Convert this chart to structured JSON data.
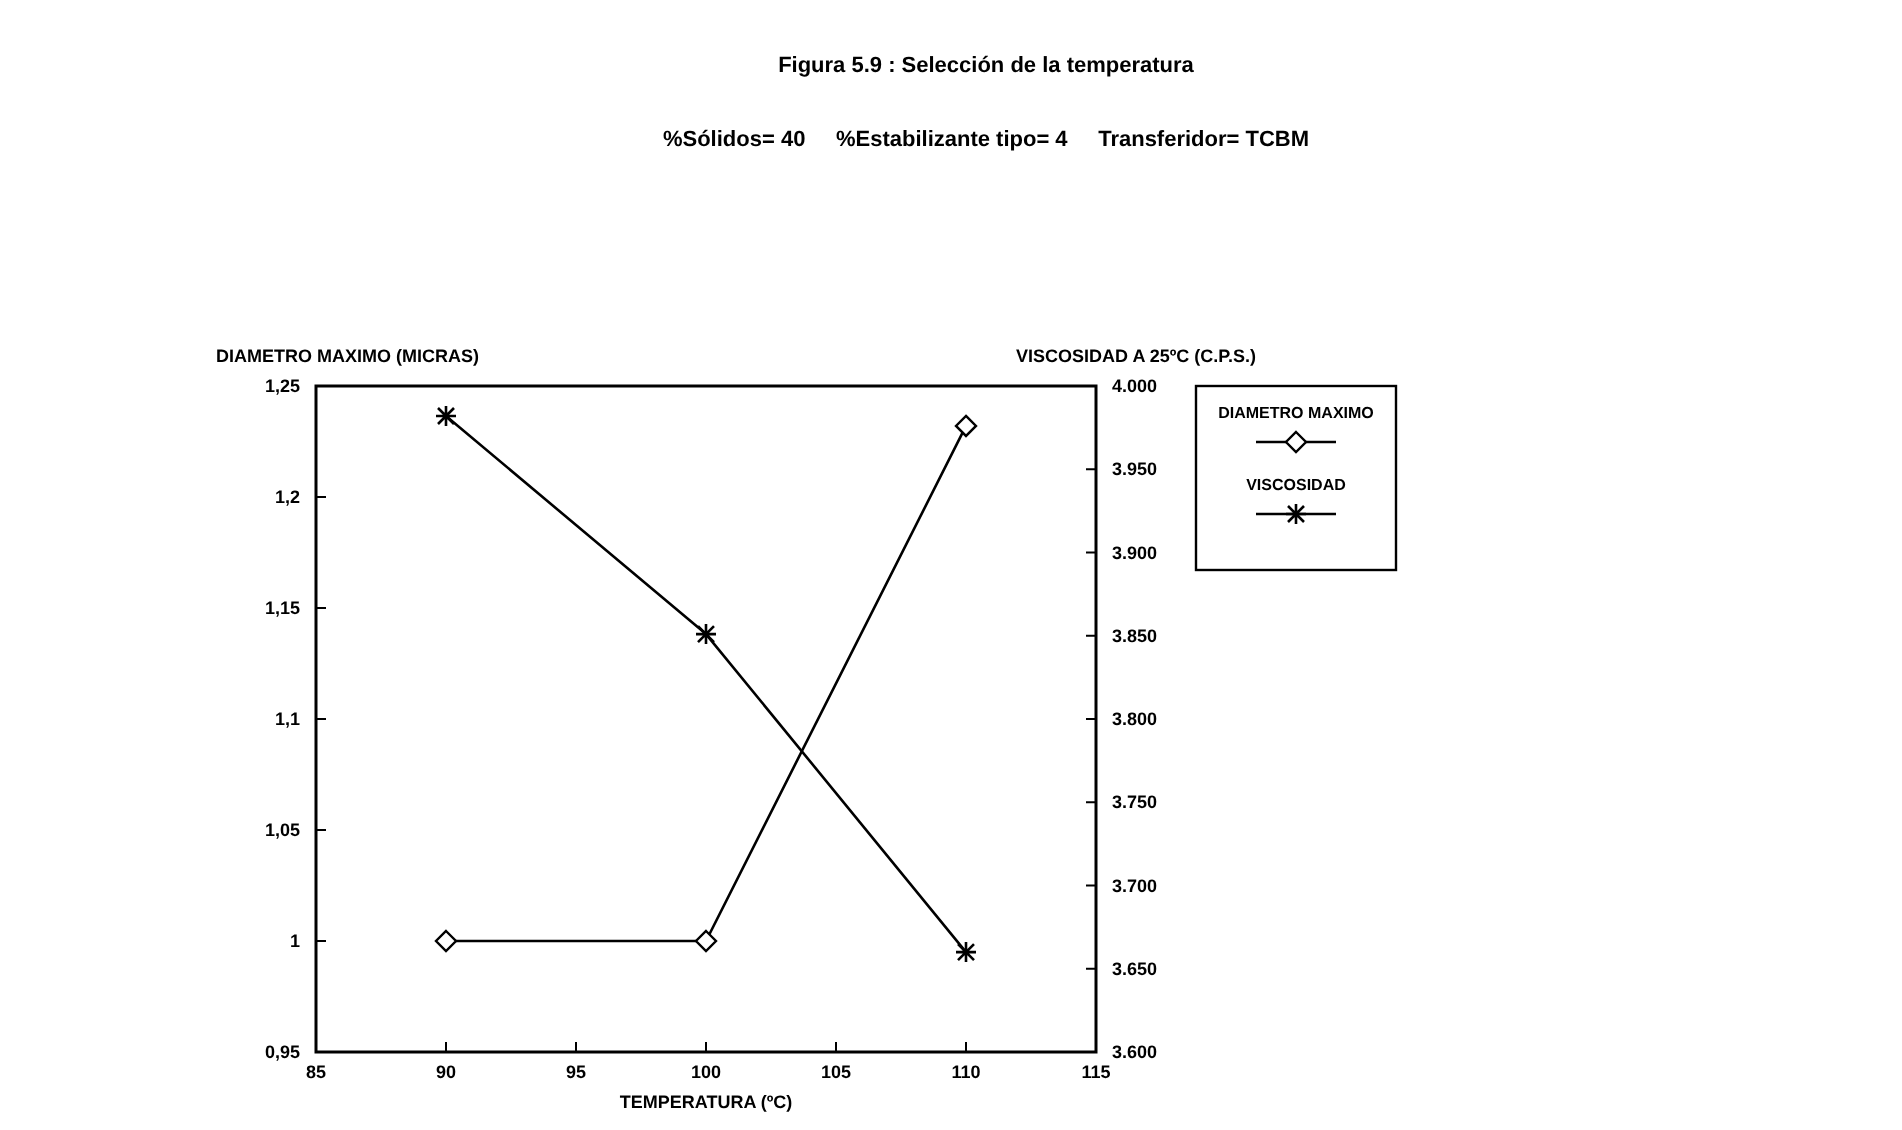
{
  "chart_data": {
    "type": "line",
    "title": "Figura 5.9 : Selección de la temperatura",
    "subtitle": "%Sólidos= 40     %Estabilizante tipo= 4     Transferidor= TCBM",
    "xlabel": "TEMPERATURA (ºC)",
    "ylabel": "DIAMETRO MAXIMO (MICRAS)",
    "y2label": "VISCOSIDAD A 25ºC (C.P.S.)",
    "x": [
      90,
      100,
      110
    ],
    "series": [
      {
        "name": "DIAMETRO MAXIMO",
        "color": "#000000",
        "marker": "diamond",
        "values": [
          1,
          1,
          1.232
        ]
      },
      {
        "name": "VISCOSIDAD",
        "color": "#000000",
        "marker": "cross",
        "axis": "y2",
        "values": [
          3982,
          3851,
          3660
        ]
      }
    ],
    "xlim": [
      85,
      115
    ],
    "xticks": [
      85,
      90,
      95,
      100,
      105,
      110,
      115
    ],
    "ylim": [
      0.95,
      1.25
    ],
    "yticks": [
      {
        "value": 0.95,
        "label": "0,95"
      },
      1,
      {
        "value": 1.05,
        "label": "1,05"
      },
      {
        "value": 1.1,
        "label": "1,1"
      },
      {
        "value": 1.15,
        "label": "1,15"
      },
      {
        "value": 1.2,
        "label": "1,2"
      },
      {
        "value": 1.25,
        "label": "1,25"
      }
    ],
    "y2lim": [
      3600,
      4000
    ],
    "y2ticks": [
      {
        "value": 3600,
        "label": "3.600"
      },
      {
        "value": 3650,
        "label": "3.650"
      },
      {
        "value": 3700,
        "label": "3.700"
      },
      {
        "value": 3750,
        "label": "3.750"
      },
      {
        "value": 3800,
        "label": "3.800"
      },
      {
        "value": 3850,
        "label": "3.850"
      },
      {
        "value": 3900,
        "label": "3.900"
      },
      {
        "value": 3950,
        "label": "3.950"
      },
      {
        "value": 4000,
        "label": "4.000"
      }
    ],
    "grid": false,
    "legend": "top right",
    "line_style": "solid"
  }
}
